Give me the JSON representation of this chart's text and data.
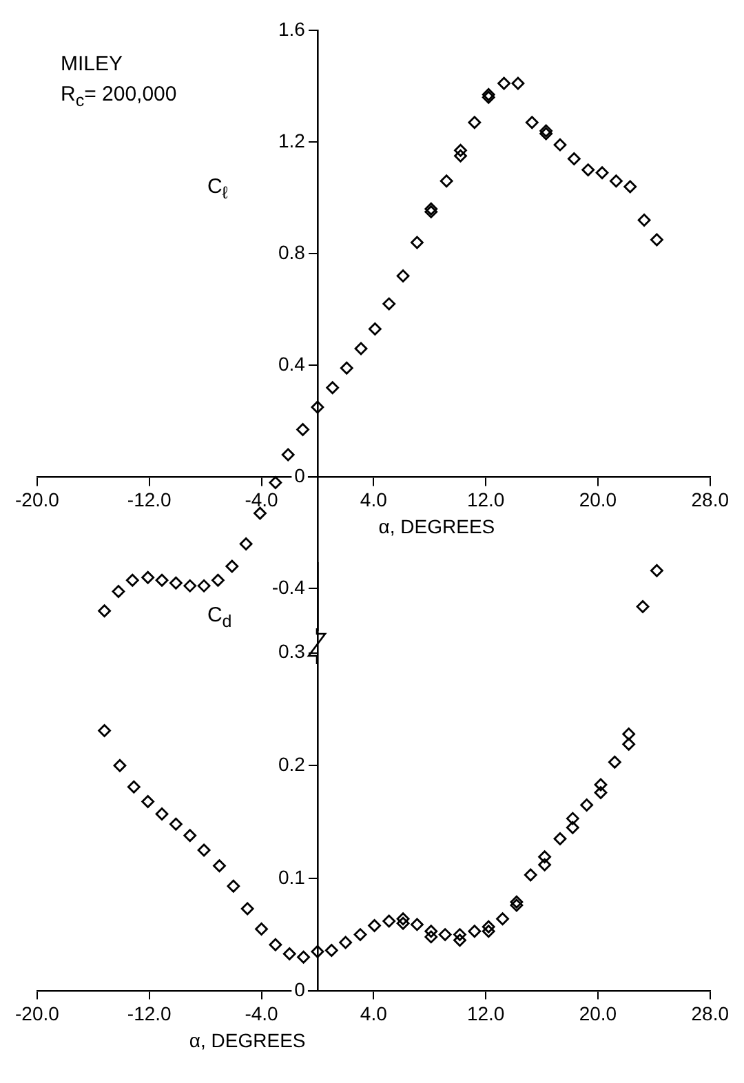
{
  "chart_data": [
    {
      "type": "scatter",
      "annotations": [
        "MILEY",
        "R$_{c}$= 200,000"
      ],
      "ylabel": "C$_{ℓ}$",
      "xlabel": "α, DEGREES",
      "color": "#000000",
      "marker": "diamond",
      "grid": false,
      "legend": false,
      "x": [
        -15.2,
        -14.2,
        -13.2,
        -12.1,
        -11.1,
        -10.1,
        -9.1,
        -8.1,
        -7.1,
        -6.1,
        -5.1,
        -4.1,
        -3.0,
        -2.1,
        -1.05,
        0,
        1.07,
        2.08,
        3.1,
        4.1,
        5.1,
        6.1,
        7.1,
        8.1,
        8.1,
        9.2,
        10.2,
        10.2,
        11.2,
        12.2,
        12.2,
        13.3,
        14.3,
        15.3,
        16.3,
        16.3,
        17.3,
        18.3,
        19.3,
        20.3,
        21.3,
        22.3,
        23.3,
        24.2
      ],
      "values": [
        -0.48,
        -0.41,
        -0.37,
        -0.36,
        -0.37,
        -0.38,
        -0.39,
        -0.39,
        -0.37,
        -0.32,
        -0.24,
        -0.13,
        -0.02,
        0.08,
        0.17,
        0.25,
        0.32,
        0.39,
        0.46,
        0.53,
        0.62,
        0.72,
        0.84,
        0.96,
        0.95,
        1.06,
        1.17,
        1.15,
        1.27,
        1.37,
        1.36,
        1.41,
        1.41,
        1.27,
        1.24,
        1.23,
        1.19,
        1.14,
        1.1,
        1.09,
        1.06,
        1.04,
        0.92,
        0.85
      ],
      "xlim": [
        -20,
        28
      ],
      "ylim": [
        -0.55,
        1.6
      ],
      "xticks": [
        {
          "value": -20,
          "label": "-20.0"
        },
        {
          "value": -12,
          "label": "-12.0"
        },
        {
          "value": -4,
          "label": "-4.0"
        },
        {
          "value": 4,
          "label": "4.0"
        },
        {
          "value": 12,
          "label": "12.0"
        },
        {
          "value": 20,
          "label": "20.0"
        },
        {
          "value": 28,
          "label": "28.0"
        }
      ],
      "yticks": [
        -0.4,
        0,
        0.4,
        0.8,
        1.2,
        1.6
      ]
    },
    {
      "type": "scatter",
      "ylabel": "C$_{d}$",
      "xlabel": "α, DEGREES",
      "color": "#000000",
      "marker": "diamond",
      "grid": false,
      "legend": false,
      "x": [
        -15.2,
        -14.1,
        -13.1,
        -12.1,
        -11.1,
        -10.1,
        -9.1,
        -8.1,
        -7.0,
        -6.0,
        -5.0,
        -4.0,
        -3.0,
        -2.0,
        -1.0,
        0,
        1.0,
        2.0,
        3.05,
        4.06,
        5.1,
        6.1,
        6.1,
        7.1,
        8.1,
        8.1,
        9.1,
        10.15,
        10.15,
        11.2,
        12.2,
        12.2,
        13.2,
        14.2,
        14.2,
        15.2,
        16.2,
        16.2,
        17.3,
        18.2,
        18.2,
        19.2,
        20.2,
        20.2,
        21.2,
        22.2,
        22.2,
        23.2,
        24.2
      ],
      "values": [
        0.231,
        0.2,
        0.181,
        0.168,
        0.157,
        0.148,
        0.138,
        0.125,
        0.111,
        0.093,
        0.073,
        0.055,
        0.041,
        0.033,
        0.03,
        0.035,
        0.036,
        0.043,
        0.05,
        0.058,
        0.062,
        0.064,
        0.06,
        0.059,
        0.053,
        0.048,
        0.05,
        0.05,
        0.045,
        0.053,
        0.057,
        0.053,
        0.064,
        0.079,
        0.076,
        0.103,
        0.119,
        0.112,
        0.135,
        0.153,
        0.145,
        0.165,
        0.183,
        0.176,
        0.203,
        0.228,
        0.219,
        0.341,
        0.373
      ],
      "xlim": [
        -20,
        28
      ],
      "ylim": [
        0,
        0.38
      ],
      "xticks": [
        {
          "value": -20,
          "label": "-20.0"
        },
        {
          "value": -12,
          "label": "-12.0"
        },
        {
          "value": -4,
          "label": "-4.0"
        },
        {
          "value": 4,
          "label": "4.0"
        },
        {
          "value": 12,
          "label": "12.0"
        },
        {
          "value": 20,
          "label": "20.0"
        },
        {
          "value": 28,
          "label": "28.0"
        }
      ],
      "yticks": [
        0,
        0.1,
        0.2,
        0.3
      ]
    }
  ]
}
